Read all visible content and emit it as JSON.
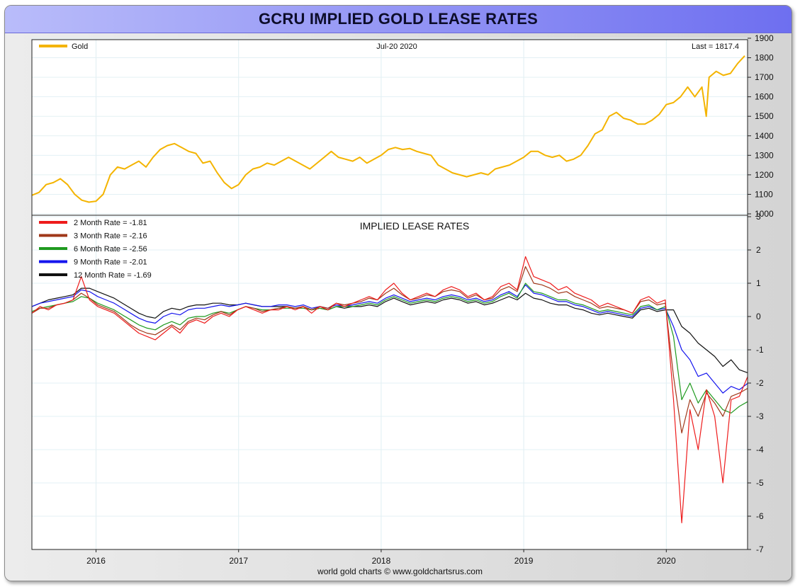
{
  "title": "GCRU IMPLIED GOLD LEASE RATES",
  "footer": "world gold charts © www.goldchartsrus.com",
  "chart_data": [
    {
      "type": "line",
      "panel": "top",
      "date_label": "Jul-20  2020",
      "last_label": "Last = 1817.4",
      "ylim": [
        1000,
        1900
      ],
      "yticks": [
        "1000",
        "1100",
        "1200",
        "1300",
        "1400",
        "1500",
        "1600",
        "1700",
        "1800",
        "1900"
      ],
      "series": [
        {
          "name": "Gold",
          "color": "#f4b400",
          "x": [
            2015.55,
            2015.6,
            2015.65,
            2015.7,
            2015.75,
            2015.8,
            2015.85,
            2015.9,
            2015.95,
            2016.0,
            2016.05,
            2016.1,
            2016.15,
            2016.2,
            2016.25,
            2016.3,
            2016.35,
            2016.4,
            2016.45,
            2016.5,
            2016.55,
            2016.6,
            2016.65,
            2016.7,
            2016.75,
            2016.8,
            2016.85,
            2016.9,
            2016.95,
            2017.0,
            2017.05,
            2017.1,
            2017.15,
            2017.2,
            2017.25,
            2017.3,
            2017.35,
            2017.4,
            2017.45,
            2017.5,
            2017.55,
            2017.6,
            2017.65,
            2017.7,
            2017.75,
            2017.8,
            2017.85,
            2017.9,
            2017.95,
            2018.0,
            2018.05,
            2018.1,
            2018.15,
            2018.2,
            2018.25,
            2018.3,
            2018.35,
            2018.4,
            2018.45,
            2018.5,
            2018.55,
            2018.6,
            2018.65,
            2018.7,
            2018.75,
            2018.8,
            2018.85,
            2018.9,
            2018.95,
            2019.0,
            2019.05,
            2019.1,
            2019.15,
            2019.2,
            2019.25,
            2019.3,
            2019.35,
            2019.4,
            2019.45,
            2019.5,
            2019.55,
            2019.6,
            2019.65,
            2019.7,
            2019.75,
            2019.8,
            2019.85,
            2019.9,
            2019.95,
            2020.0,
            2020.05,
            2020.1,
            2020.15,
            2020.2,
            2020.25,
            2020.28,
            2020.3,
            2020.35,
            2020.4,
            2020.45,
            2020.5,
            2020.55
          ],
          "values": [
            1095,
            1110,
            1150,
            1160,
            1180,
            1150,
            1100,
            1070,
            1060,
            1065,
            1100,
            1200,
            1240,
            1230,
            1250,
            1270,
            1240,
            1290,
            1330,
            1350,
            1360,
            1340,
            1320,
            1310,
            1260,
            1270,
            1210,
            1160,
            1130,
            1150,
            1200,
            1230,
            1240,
            1260,
            1250,
            1270,
            1290,
            1270,
            1250,
            1230,
            1260,
            1290,
            1320,
            1290,
            1280,
            1270,
            1290,
            1260,
            1280,
            1300,
            1330,
            1340,
            1330,
            1335,
            1320,
            1310,
            1300,
            1250,
            1230,
            1210,
            1200,
            1190,
            1200,
            1210,
            1200,
            1230,
            1240,
            1250,
            1270,
            1290,
            1320,
            1320,
            1300,
            1290,
            1300,
            1270,
            1280,
            1300,
            1350,
            1410,
            1430,
            1500,
            1520,
            1490,
            1480,
            1460,
            1460,
            1480,
            1510,
            1560,
            1570,
            1600,
            1650,
            1600,
            1650,
            1500,
            1700,
            1730,
            1710,
            1720,
            1770,
            1810
          ]
        }
      ]
    },
    {
      "type": "line",
      "panel": "bottom",
      "title": "IMPLIED LEASE RATES",
      "ylim": [
        -7,
        3
      ],
      "yticks": [
        "-7",
        "-6",
        "-5",
        "-4",
        "-3",
        "-2",
        "-1",
        "0",
        "1",
        "2",
        "3"
      ],
      "xticks": [
        "2016",
        "2017",
        "2018",
        "2019",
        "2020"
      ],
      "xlim": [
        2015.55,
        2020.57
      ],
      "series": [
        {
          "name": "2 Month Rate  = -1.81",
          "color": "#ee1c1c",
          "values": [
            0.1,
            0.3,
            0.2,
            0.35,
            0.4,
            0.5,
            1.2,
            0.5,
            0.3,
            0.2,
            0.1,
            -0.1,
            -0.3,
            -0.5,
            -0.6,
            -0.7,
            -0.5,
            -0.3,
            -0.5,
            -0.2,
            -0.1,
            -0.2,
            0.0,
            0.1,
            0.0,
            0.2,
            0.3,
            0.2,
            0.1,
            0.2,
            0.2,
            0.3,
            0.2,
            0.3,
            0.1,
            0.3,
            0.2,
            0.4,
            0.3,
            0.4,
            0.5,
            0.6,
            0.5,
            0.8,
            1.0,
            0.7,
            0.5,
            0.6,
            0.7,
            0.6,
            0.8,
            0.9,
            0.8,
            0.6,
            0.7,
            0.5,
            0.6,
            0.9,
            1.0,
            0.8,
            1.8,
            1.2,
            1.1,
            1.0,
            0.8,
            0.9,
            0.7,
            0.6,
            0.5,
            0.3,
            0.4,
            0.3,
            0.2,
            0.1,
            0.5,
            0.6,
            0.4,
            0.5,
            -2.5,
            -6.2,
            -2.8,
            -4.0,
            -2.2,
            -3.0,
            -5.0,
            -2.5,
            -2.4,
            -1.81
          ]
        },
        {
          "name": "3 Month Rate  = -2.16",
          "color": "#a0381a",
          "values": [
            0.1,
            0.25,
            0.25,
            0.35,
            0.4,
            0.5,
            0.7,
            0.55,
            0.35,
            0.25,
            0.15,
            -0.05,
            -0.25,
            -0.4,
            -0.5,
            -0.55,
            -0.4,
            -0.25,
            -0.4,
            -0.15,
            -0.05,
            -0.1,
            0.05,
            0.15,
            0.05,
            0.2,
            0.3,
            0.25,
            0.15,
            0.2,
            0.25,
            0.3,
            0.25,
            0.3,
            0.2,
            0.3,
            0.25,
            0.4,
            0.35,
            0.4,
            0.45,
            0.55,
            0.5,
            0.7,
            0.85,
            0.65,
            0.5,
            0.55,
            0.65,
            0.6,
            0.75,
            0.8,
            0.75,
            0.55,
            0.65,
            0.5,
            0.55,
            0.8,
            0.9,
            0.75,
            1.5,
            1.0,
            0.95,
            0.85,
            0.7,
            0.75,
            0.6,
            0.5,
            0.4,
            0.25,
            0.3,
            0.25,
            0.2,
            0.1,
            0.45,
            0.5,
            0.35,
            0.4,
            -1.8,
            -3.5,
            -2.5,
            -3.0,
            -2.3,
            -2.6,
            -3.0,
            -2.4,
            -2.3,
            -2.16
          ]
        },
        {
          "name": "6 Month Rate  = -2.56",
          "color": "#1f9a1f",
          "values": [
            0.15,
            0.25,
            0.3,
            0.35,
            0.4,
            0.45,
            0.6,
            0.55,
            0.4,
            0.3,
            0.2,
            0.05,
            -0.1,
            -0.25,
            -0.35,
            -0.4,
            -0.25,
            -0.15,
            -0.25,
            -0.05,
            0.0,
            0.0,
            0.1,
            0.15,
            0.1,
            0.2,
            0.3,
            0.25,
            0.2,
            0.2,
            0.25,
            0.25,
            0.25,
            0.25,
            0.2,
            0.25,
            0.2,
            0.3,
            0.3,
            0.3,
            0.35,
            0.4,
            0.35,
            0.5,
            0.6,
            0.5,
            0.4,
            0.45,
            0.5,
            0.45,
            0.55,
            0.6,
            0.55,
            0.45,
            0.5,
            0.4,
            0.45,
            0.6,
            0.7,
            0.55,
            1.0,
            0.75,
            0.7,
            0.6,
            0.5,
            0.5,
            0.4,
            0.35,
            0.25,
            0.15,
            0.2,
            0.15,
            0.1,
            0.05,
            0.3,
            0.35,
            0.2,
            0.3,
            -0.6,
            -2.5,
            -2.0,
            -2.6,
            -2.2,
            -2.5,
            -2.8,
            -2.9,
            -2.7,
            -2.56
          ]
        },
        {
          "name": "9 Month Rate  = -2.01",
          "color": "#1515ee",
          "values": [
            0.3,
            0.4,
            0.45,
            0.5,
            0.55,
            0.6,
            0.8,
            0.75,
            0.6,
            0.5,
            0.4,
            0.25,
            0.1,
            -0.05,
            -0.15,
            -0.2,
            0.0,
            0.1,
            0.05,
            0.2,
            0.25,
            0.25,
            0.3,
            0.35,
            0.3,
            0.35,
            0.4,
            0.35,
            0.3,
            0.3,
            0.35,
            0.35,
            0.3,
            0.35,
            0.25,
            0.3,
            0.25,
            0.35,
            0.3,
            0.35,
            0.4,
            0.45,
            0.4,
            0.55,
            0.65,
            0.55,
            0.45,
            0.5,
            0.55,
            0.5,
            0.6,
            0.65,
            0.6,
            0.5,
            0.55,
            0.45,
            0.5,
            0.65,
            0.75,
            0.6,
            0.95,
            0.7,
            0.65,
            0.55,
            0.45,
            0.45,
            0.35,
            0.3,
            0.2,
            0.1,
            0.15,
            0.1,
            0.05,
            0.0,
            0.25,
            0.3,
            0.2,
            0.25,
            -0.3,
            -1.0,
            -1.3,
            -1.8,
            -1.7,
            -2.0,
            -2.3,
            -2.1,
            -2.2,
            -2.01
          ]
        },
        {
          "name": "12 Month Rate  = -1.69",
          "color": "#111111",
          "values": [
            0.3,
            0.4,
            0.5,
            0.55,
            0.6,
            0.65,
            0.85,
            0.85,
            0.75,
            0.65,
            0.55,
            0.4,
            0.25,
            0.1,
            0.0,
            -0.05,
            0.15,
            0.25,
            0.2,
            0.3,
            0.35,
            0.35,
            0.4,
            0.4,
            0.35,
            0.35,
            0.4,
            0.35,
            0.3,
            0.3,
            0.3,
            0.3,
            0.25,
            0.3,
            0.2,
            0.25,
            0.2,
            0.3,
            0.25,
            0.3,
            0.3,
            0.35,
            0.3,
            0.45,
            0.55,
            0.45,
            0.35,
            0.4,
            0.45,
            0.4,
            0.5,
            0.55,
            0.5,
            0.4,
            0.45,
            0.35,
            0.4,
            0.5,
            0.6,
            0.5,
            0.7,
            0.55,
            0.5,
            0.4,
            0.35,
            0.35,
            0.25,
            0.2,
            0.1,
            0.05,
            0.1,
            0.05,
            0.0,
            -0.05,
            0.2,
            0.25,
            0.15,
            0.2,
            0.2,
            -0.3,
            -0.5,
            -0.8,
            -1.0,
            -1.2,
            -1.5,
            -1.3,
            -1.6,
            -1.69
          ]
        }
      ]
    }
  ]
}
